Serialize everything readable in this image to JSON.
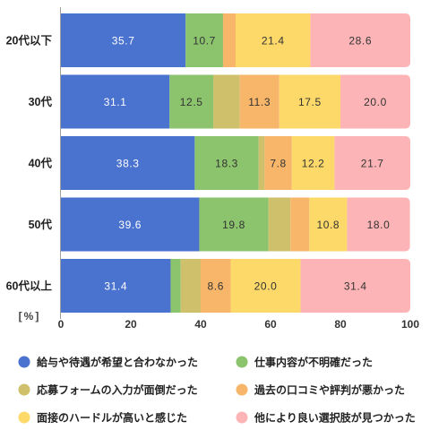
{
  "chart_data": {
    "type": "bar",
    "orientation": "horizontal",
    "stacking": "percent",
    "categories": [
      "20代以下",
      "30代",
      "40代",
      "50代",
      "60代以上"
    ],
    "series": [
      {
        "name": "給与や待遇が希望と合わなかった",
        "color": "#4a72cf",
        "label_color": "#ffffff",
        "values": [
          35.7,
          31.1,
          38.3,
          39.6,
          31.4
        ],
        "labels": [
          "35.7",
          "31.1",
          "38.3",
          "39.6",
          "31.4"
        ]
      },
      {
        "name": "仕事内容が不明確だった",
        "color": "#8cc36d",
        "label_color": "#333333",
        "values": [
          10.7,
          12.5,
          18.3,
          19.8,
          2.9
        ],
        "labels": [
          "10.7",
          "12.5",
          "18.3",
          "19.8",
          null
        ]
      },
      {
        "name": "応募フォームの入力が面倒だった",
        "color": "#cfc16c",
        "label_color": "#333333",
        "values": [
          0,
          7.6,
          1.7,
          6.3,
          5.7
        ],
        "labels": [
          null,
          null,
          null,
          null,
          null
        ]
      },
      {
        "name": "過去の口コミや評判が悪かった",
        "color": "#f7b66a",
        "label_color": "#333333",
        "values": [
          3.6,
          11.3,
          7.8,
          5.4,
          8.6
        ],
        "labels": [
          null,
          "11.3",
          "7.8",
          null,
          "8.6"
        ]
      },
      {
        "name": "面接のハードルが高いと感じた",
        "color": "#fdd96a",
        "label_color": "#333333",
        "values": [
          21.4,
          17.5,
          12.2,
          10.8,
          20.0
        ],
        "labels": [
          "21.4",
          "17.5",
          "12.2",
          "10.8",
          "20.0"
        ]
      },
      {
        "name": "他により良い選択肢が見つかった",
        "color": "#fdb4b6",
        "label_color": "#333333",
        "values": [
          28.6,
          20.0,
          21.7,
          18.0,
          31.4
        ],
        "labels": [
          "28.6",
          "20.0",
          "21.7",
          "18.0",
          "31.4"
        ]
      }
    ],
    "xlim": [
      0,
      100
    ],
    "xticks": [
      0,
      20,
      40,
      60,
      80,
      100
    ],
    "unit_label": "[%]",
    "grid": false,
    "legend_position": "bottom"
  }
}
